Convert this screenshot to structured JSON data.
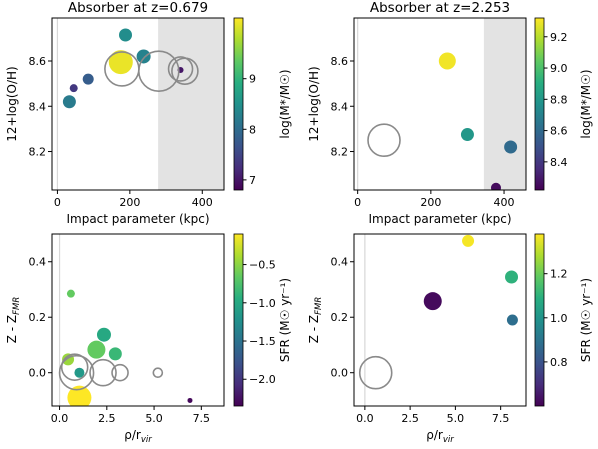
{
  "chart_data": [
    {
      "type": "scatter",
      "title": "Absorber at z=0.679",
      "xlabel": "Impact parameter (kpc)",
      "ylabel": "12+log(O/H)",
      "xlim": [
        -15,
        460
      ],
      "ylim": [
        8.03,
        8.79
      ],
      "xticks": [
        0,
        200,
        400
      ],
      "yticks": [
        8.2,
        8.4,
        8.6
      ],
      "xtick_labels": [
        "0",
        "200",
        "400"
      ],
      "ytick_labels": [
        "8.2",
        "8.4",
        "8.6"
      ],
      "shaded_region": [
        278,
        460
      ],
      "vline": 0,
      "colorbar": {
        "label": "log(M*/M☉)",
        "range": [
          6.8,
          10.2
        ],
        "ticks": [
          7,
          8,
          9
        ],
        "tick_labels": [
          "7",
          "8",
          "9"
        ],
        "colormap": "viridis"
      },
      "filled_points": [
        {
          "x": 175,
          "y": 8.595,
          "c": 10.1,
          "s": 12
        },
        {
          "x": 188,
          "y": 8.715,
          "c": 8.45,
          "s": 6.5
        },
        {
          "x": 238,
          "y": 8.62,
          "c": 8.3,
          "s": 7
        },
        {
          "x": 33,
          "y": 8.42,
          "c": 8.2,
          "s": 6.5
        },
        {
          "x": 85,
          "y": 8.52,
          "c": 7.8,
          "s": 5.5
        },
        {
          "x": 45,
          "y": 8.48,
          "c": 7.35,
          "s": 4
        },
        {
          "x": 340,
          "y": 8.56,
          "c": 7.0,
          "s": 3
        }
      ],
      "open_circles": [
        {
          "x": 178,
          "y": 8.565,
          "s": 17
        },
        {
          "x": 280,
          "y": 8.555,
          "s": 20
        },
        {
          "x": 340,
          "y": 8.565,
          "s": 12
        },
        {
          "x": 352,
          "y": 8.555,
          "s": 13
        }
      ]
    },
    {
      "type": "scatter",
      "title": "Absorber at z=2.253",
      "xlabel": "Impact parameter (kpc)",
      "ylabel": "12+log(O/H)",
      "xlim": [
        -10,
        460
      ],
      "ylim": [
        8.03,
        8.79
      ],
      "xticks": [
        0,
        200,
        400
      ],
      "yticks": [
        8.2,
        8.4,
        8.6
      ],
      "xtick_labels": [
        "0",
        "200",
        "400"
      ],
      "ytick_labels": [
        "8.2",
        "8.4",
        "8.6"
      ],
      "shaded_region": [
        345,
        460
      ],
      "vline": 0,
      "colorbar": {
        "label": "log(M*/M☉)",
        "range": [
          8.22,
          9.32
        ],
        "ticks": [
          8.4,
          8.6,
          8.8,
          9.0,
          9.2
        ],
        "tick_labels": [
          "8.4",
          "8.6",
          "8.8",
          "9.0",
          "9.2"
        ],
        "colormap": "viridis"
      },
      "filled_points": [
        {
          "x": 245,
          "y": 8.6,
          "c": 9.3,
          "s": 8.5
        },
        {
          "x": 300,
          "y": 8.275,
          "c": 8.8,
          "s": 6.5
        },
        {
          "x": 418,
          "y": 8.22,
          "c": 8.6,
          "s": 6.5
        },
        {
          "x": 378,
          "y": 8.04,
          "c": 8.25,
          "s": 5
        }
      ],
      "open_circles": [
        {
          "x": 72,
          "y": 8.25,
          "s": 16
        }
      ]
    },
    {
      "type": "scatter",
      "title": "",
      "xlabel": "ρ/r_vir",
      "ylabel": "Z - Z_FMR",
      "xlim": [
        -0.4,
        8.7
      ],
      "ylim": [
        -0.12,
        0.5
      ],
      "xticks": [
        0,
        2.5,
        5,
        7.5
      ],
      "yticks": [
        0.0,
        0.2,
        0.4
      ],
      "xtick_labels": [
        "0.0",
        "2.5",
        "5.0",
        "7.5"
      ],
      "ytick_labels": [
        "0.0",
        "0.2",
        "0.4"
      ],
      "shaded_region": null,
      "vline": 0,
      "colorbar": {
        "label": "SFR (M☉ yr⁻¹)",
        "range": [
          -2.35,
          -0.1
        ],
        "ticks": [
          -2.0,
          -1.5,
          -1.0,
          -0.5
        ],
        "tick_labels": [
          "−2.0",
          "−1.5",
          "−1.0",
          "−0.5"
        ],
        "colormap": "viridis"
      },
      "filled_points": [
        {
          "x": 1.05,
          "y": -0.09,
          "c": -0.1,
          "s": 12
        },
        {
          "x": 0.6,
          "y": 0.285,
          "c": -0.65,
          "s": 4
        },
        {
          "x": 0.45,
          "y": 0.048,
          "c": -0.45,
          "s": 6
        },
        {
          "x": 2.35,
          "y": 0.137,
          "c": -1.0,
          "s": 7
        },
        {
          "x": 1.95,
          "y": 0.083,
          "c": -0.65,
          "s": 9
        },
        {
          "x": 2.95,
          "y": 0.068,
          "c": -0.85,
          "s": 6.5
        },
        {
          "x": 1.05,
          "y": 0.0,
          "c": -1.15,
          "s": 5
        },
        {
          "x": 6.9,
          "y": -0.1,
          "c": -2.3,
          "s": 2.5
        }
      ],
      "open_circles": [
        {
          "x": 0.9,
          "y": 0.0,
          "s": 17
        },
        {
          "x": 0.8,
          "y": 0.02,
          "s": 13
        },
        {
          "x": 2.3,
          "y": 0.0,
          "s": 13
        },
        {
          "x": 3.2,
          "y": 0.0,
          "s": 8
        },
        {
          "x": 5.2,
          "y": 0.0,
          "s": 4.5
        }
      ]
    },
    {
      "type": "scatter",
      "title": "",
      "xlabel": "ρ/r_vir",
      "ylabel": "Z - Z_FMR",
      "xlim": [
        -0.6,
        8.9
      ],
      "ylim": [
        -0.12,
        0.5
      ],
      "xticks": [
        0,
        2.5,
        5,
        7.5
      ],
      "yticks": [
        0.0,
        0.2,
        0.4
      ],
      "xtick_labels": [
        "0.0",
        "2.5",
        "5.0",
        "7.5"
      ],
      "ytick_labels": [
        "0.0",
        "0.2",
        "0.4"
      ],
      "shaded_region": null,
      "vline": 0,
      "colorbar": {
        "label": "SFR (M☉ yr⁻¹)",
        "range": [
          0.6,
          1.38
        ],
        "ticks": [
          0.8,
          1.0,
          1.2
        ],
        "tick_labels": [
          "0.8",
          "1.0",
          "1.2"
        ],
        "colormap": "viridis"
      },
      "filled_points": [
        {
          "x": 5.7,
          "y": 0.475,
          "c": 1.37,
          "s": 6
        },
        {
          "x": 8.1,
          "y": 0.345,
          "c": 1.1,
          "s": 6.5
        },
        {
          "x": 3.75,
          "y": 0.258,
          "c": 0.62,
          "s": 9
        },
        {
          "x": 8.15,
          "y": 0.19,
          "c": 0.88,
          "s": 5.5
        }
      ],
      "open_circles": [
        {
          "x": 0.6,
          "y": 0.0,
          "s": 16
        }
      ]
    }
  ]
}
